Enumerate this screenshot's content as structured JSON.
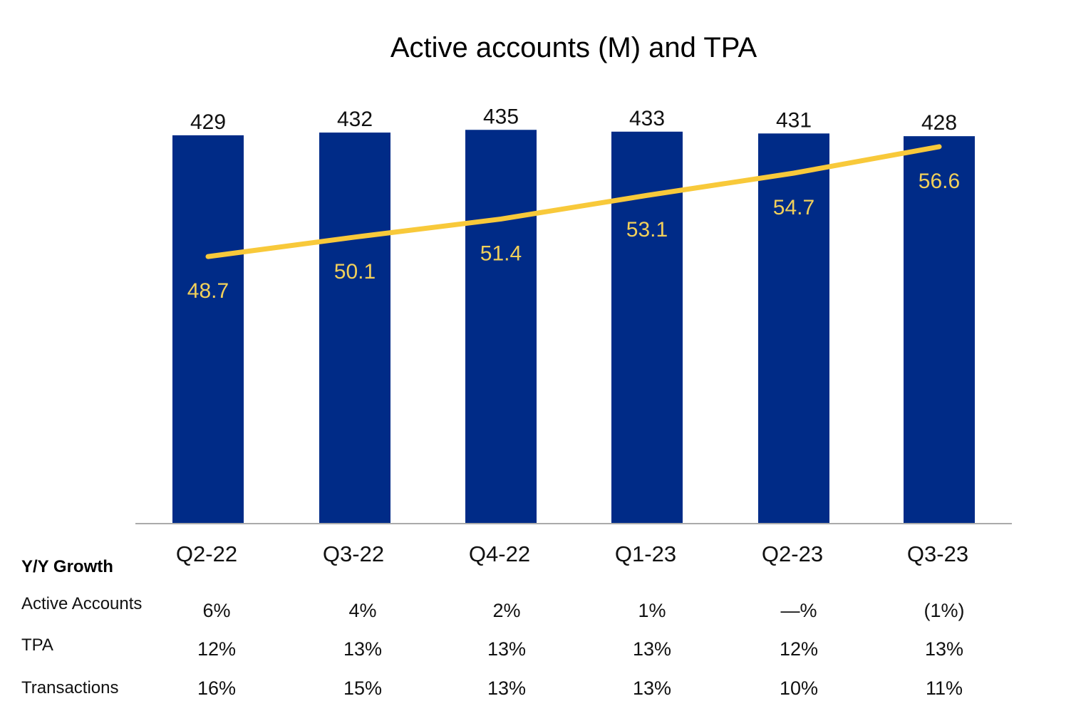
{
  "chart_data": {
    "type": "bar+line",
    "title": "Active accounts (M) and TPA",
    "categories": [
      "Q2-22",
      "Q3-22",
      "Q4-22",
      "Q1-23",
      "Q2-23",
      "Q3-23"
    ],
    "series": [
      {
        "type": "bar",
        "values": [
          429,
          432,
          435,
          433,
          431,
          428
        ],
        "labels": [
          "429",
          "432",
          "435",
          "433",
          "431",
          "428"
        ],
        "color": "#002B87"
      },
      {
        "type": "line",
        "values": [
          48.7,
          50.1,
          51.4,
          53.1,
          54.7,
          56.6
        ],
        "labels": [
          "48.7",
          "50.1",
          "51.4",
          "53.1",
          "54.7",
          "56.6"
        ],
        "color": "#F8C93A",
        "label_color": "#F2D05A"
      }
    ],
    "ylim": [
      0,
      484
    ],
    "y2lim": [
      29.5,
      61.0
    ],
    "grid": false,
    "legend": "none"
  },
  "growth_table": {
    "header": "Y/Y Growth",
    "rows": [
      {
        "label": "Active Accounts",
        "values": [
          "6%",
          "4%",
          "2%",
          "1%",
          "—%",
          "(1%)"
        ]
      },
      {
        "label": "TPA",
        "values": [
          "12%",
          "13%",
          "13%",
          "13%",
          "12%",
          "13%"
        ]
      },
      {
        "label": "Transactions",
        "values": [
          "16%",
          "15%",
          "13%",
          "13%",
          "10%",
          "11%"
        ]
      }
    ]
  }
}
